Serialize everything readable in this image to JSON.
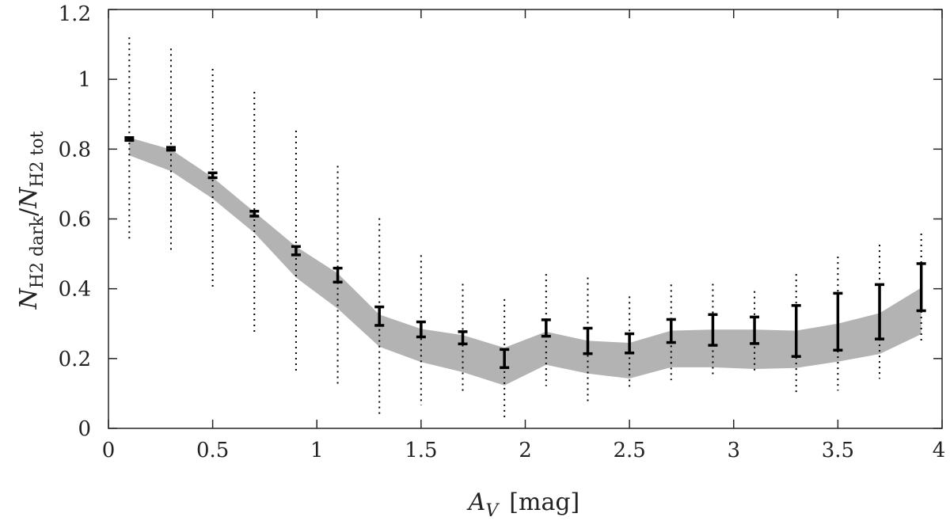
{
  "chart_data": {
    "type": "scatter",
    "xlabel": {
      "main": "A",
      "sub": "V",
      "unit": "[mag]"
    },
    "ylabel": {
      "n1": "N",
      "sub1": "H2 dark",
      "slash": "/",
      "n2": "N",
      "sub2": "H2 tot"
    },
    "xlim": [
      0,
      4
    ],
    "ylim": [
      0,
      1.2
    ],
    "xticks": [
      0,
      0.5,
      1,
      1.5,
      2,
      2.5,
      3,
      3.5,
      4
    ],
    "xtick_labels": [
      "0",
      "0.5",
      "1",
      "1.5",
      "2",
      "2.5",
      "3",
      "3.5",
      "4"
    ],
    "yticks": [
      0,
      0.2,
      0.4,
      0.6,
      0.8,
      1.0,
      1.2
    ],
    "ytick_labels": [
      "0",
      "0.2",
      "0.4",
      "0.6",
      "0.8",
      "1",
      "1.2"
    ],
    "grid": false,
    "x": [
      0.1,
      0.3,
      0.5,
      0.7,
      0.9,
      1.1,
      1.3,
      1.5,
      1.7,
      1.9,
      2.1,
      2.3,
      2.5,
      2.7,
      2.9,
      3.1,
      3.3,
      3.5,
      3.7,
      3.9
    ],
    "solid_errorbars": {
      "low": [
        0.825,
        0.797,
        0.718,
        0.608,
        0.497,
        0.419,
        0.295,
        0.262,
        0.242,
        0.174,
        0.264,
        0.214,
        0.216,
        0.246,
        0.238,
        0.243,
        0.206,
        0.224,
        0.256,
        0.337
      ],
      "high": [
        0.833,
        0.805,
        0.732,
        0.622,
        0.521,
        0.459,
        0.348,
        0.305,
        0.277,
        0.226,
        0.311,
        0.287,
        0.271,
        0.312,
        0.326,
        0.319,
        0.352,
        0.387,
        0.412,
        0.472
      ]
    },
    "dotted_ranges": {
      "low": [
        0.537,
        0.511,
        0.404,
        0.269,
        0.16,
        0.125,
        0.041,
        0.066,
        0.098,
        0.029,
        0.121,
        0.069,
        0.108,
        0.138,
        0.144,
        0.163,
        0.099,
        0.108,
        0.142,
        0.244
      ],
      "high": [
        1.12,
        1.088,
        1.03,
        0.964,
        0.853,
        0.752,
        0.602,
        0.496,
        0.414,
        0.37,
        0.442,
        0.432,
        0.378,
        0.412,
        0.414,
        0.393,
        0.442,
        0.492,
        0.526,
        0.558
      ]
    },
    "shaded_band": {
      "lower": [
        0.782,
        0.737,
        0.658,
        0.56,
        0.432,
        0.343,
        0.234,
        0.19,
        0.161,
        0.123,
        0.182,
        0.157,
        0.143,
        0.175,
        0.175,
        0.17,
        0.173,
        0.191,
        0.213,
        0.27
      ],
      "upper": [
        0.833,
        0.799,
        0.719,
        0.62,
        0.521,
        0.444,
        0.326,
        0.285,
        0.267,
        0.231,
        0.277,
        0.251,
        0.245,
        0.28,
        0.283,
        0.283,
        0.28,
        0.3,
        0.33,
        0.403
      ],
      "color": "#b3b3b3"
    },
    "colors": {
      "errorbar": "#000000",
      "axis": "#262626"
    }
  }
}
